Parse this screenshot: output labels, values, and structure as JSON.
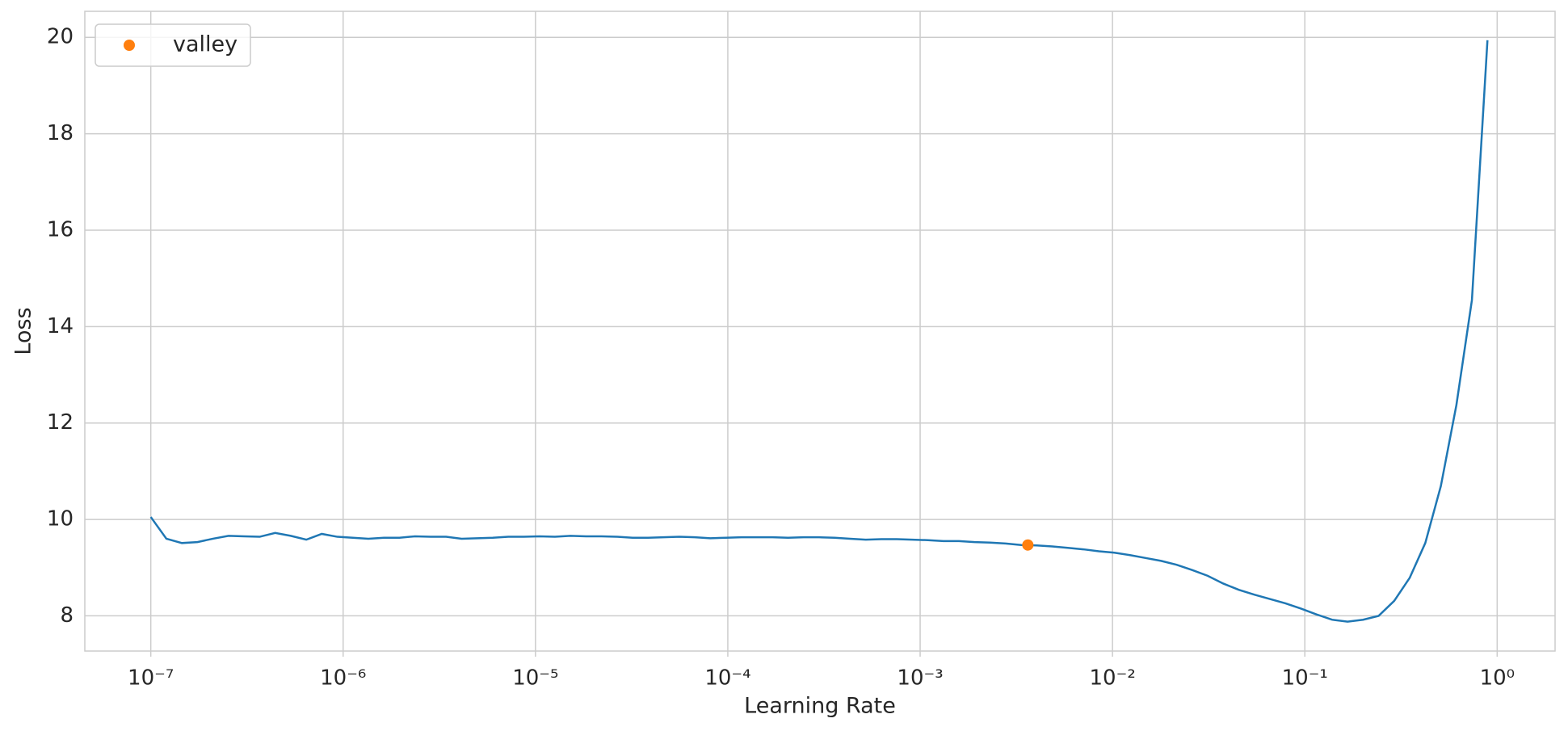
{
  "chart_data": {
    "type": "line",
    "xlabel": "Learning Rate",
    "ylabel": "Loss",
    "xscale": "log",
    "grid": true,
    "legend": "upper left",
    "xlim": [
      4.54e-08,
      2.0
    ],
    "ylim": [
      7.27,
      20.54
    ],
    "xticks": [
      {
        "value": 1e-07,
        "label": "10⁻⁷"
      },
      {
        "value": 1e-06,
        "label": "10⁻⁶"
      },
      {
        "value": 1e-05,
        "label": "10⁻⁵"
      },
      {
        "value": 0.0001,
        "label": "10⁻⁴"
      },
      {
        "value": 0.001,
        "label": "10⁻³"
      },
      {
        "value": 0.01,
        "label": "10⁻²"
      },
      {
        "value": 0.1,
        "label": "10⁻¹"
      },
      {
        "value": 1,
        "label": "10⁰"
      }
    ],
    "yticks": [
      8,
      10,
      12,
      14,
      16,
      18,
      20
    ],
    "x": [
      1e-07,
      1.205e-07,
      1.451e-07,
      1.748e-07,
      2.105e-07,
      2.536e-07,
      3.055e-07,
      3.68e-07,
      4.433e-07,
      5.34e-07,
      6.433e-07,
      7.743e-07,
      9.326e-07,
      1.123e-06,
      1.353e-06,
      1.63e-06,
      1.963e-06,
      2.364e-06,
      2.848e-06,
      3.43e-06,
      4.132e-06,
      4.977e-06,
      5.995e-06,
      7.221e-06,
      8.697e-06,
      1.048e-05,
      1.262e-05,
      1.52e-05,
      1.831e-05,
      2.205e-05,
      2.656e-05,
      3.199e-05,
      3.854e-05,
      4.642e-05,
      5.591e-05,
      6.734e-05,
      8.111e-05,
      9.77e-05,
      0.0001177,
      0.0001417,
      0.0001707,
      0.0002056,
      0.0002477,
      0.0002983,
      0.0003594,
      0.0004329,
      0.0005214,
      0.000628,
      0.0007565,
      0.0009112,
      0.001098,
      0.001322,
      0.001592,
      0.001918,
      0.00231,
      0.002783,
      0.003352,
      0.004037,
      0.004863,
      0.005857,
      0.007055,
      0.008498,
      0.01024,
      0.01233,
      0.01485,
      0.01789,
      0.02154,
      0.02595,
      0.03126,
      0.03765,
      0.04535,
      0.05462,
      0.06579,
      0.07924,
      0.09545,
      0.115,
      0.1385,
      0.1668,
      0.2009,
      0.242,
      0.2915,
      0.3511,
      0.4229,
      0.5094,
      0.6136,
      0.7391,
      0.8902
    ],
    "series": [
      {
        "color": "#1f77b4",
        "values": [
          10.05,
          9.6,
          9.51,
          9.53,
          9.6,
          9.66,
          9.65,
          9.64,
          9.72,
          9.66,
          9.58,
          9.7,
          9.64,
          9.62,
          9.6,
          9.62,
          9.62,
          9.65,
          9.64,
          9.64,
          9.6,
          9.61,
          9.62,
          9.64,
          9.64,
          9.65,
          9.64,
          9.66,
          9.65,
          9.65,
          9.64,
          9.62,
          9.62,
          9.63,
          9.64,
          9.63,
          9.61,
          9.62,
          9.63,
          9.63,
          9.63,
          9.62,
          9.63,
          9.63,
          9.62,
          9.6,
          9.58,
          9.59,
          9.59,
          9.58,
          9.57,
          9.55,
          9.55,
          9.53,
          9.52,
          9.5,
          9.47,
          9.46,
          9.44,
          9.41,
          9.38,
          9.34,
          9.31,
          9.26,
          9.2,
          9.14,
          9.06,
          8.95,
          8.83,
          8.67,
          8.54,
          8.44,
          8.35,
          8.26,
          8.15,
          8.03,
          7.92,
          7.88,
          7.92,
          8.0,
          8.31,
          8.79,
          9.51,
          10.69,
          12.37,
          14.55,
          19.94
        ]
      },
      {
        "name": "valley",
        "type": "scatter",
        "color": "#ff7f0e",
        "x": [
          0.00363
        ],
        "values": [
          9.47
        ]
      }
    ]
  }
}
